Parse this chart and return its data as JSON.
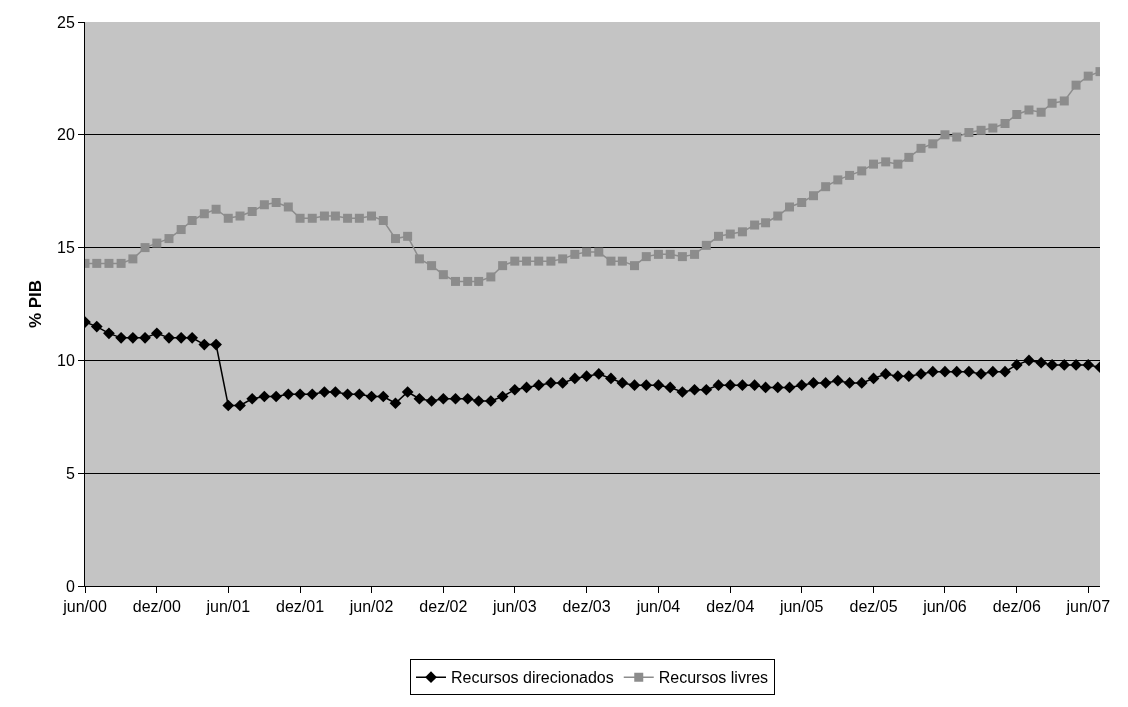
{
  "chart_data": {
    "type": "line",
    "ylabel": "% PIB",
    "x": [
      "2000-06",
      "2000-07",
      "2000-08",
      "2000-09",
      "2000-10",
      "2000-11",
      "2000-12",
      "2001-01",
      "2001-02",
      "2001-03",
      "2001-04",
      "2001-05",
      "2001-06",
      "2001-07",
      "2001-08",
      "2001-09",
      "2001-10",
      "2001-11",
      "2001-12",
      "2002-01",
      "2002-02",
      "2002-03",
      "2002-04",
      "2002-05",
      "2002-06",
      "2002-07",
      "2002-08",
      "2002-09",
      "2002-10",
      "2002-11",
      "2002-12",
      "2003-01",
      "2003-02",
      "2003-03",
      "2003-04",
      "2003-05",
      "2003-06",
      "2003-07",
      "2003-08",
      "2003-09",
      "2003-10",
      "2003-11",
      "2003-12",
      "2004-01",
      "2004-02",
      "2004-03",
      "2004-04",
      "2004-05",
      "2004-06",
      "2004-07",
      "2004-08",
      "2004-09",
      "2004-10",
      "2004-11",
      "2004-12",
      "2005-01",
      "2005-02",
      "2005-03",
      "2005-04",
      "2005-05",
      "2005-06",
      "2005-07",
      "2005-08",
      "2005-09",
      "2005-10",
      "2005-11",
      "2005-12",
      "2006-01",
      "2006-02",
      "2006-03",
      "2006-04",
      "2006-05",
      "2006-06",
      "2006-07",
      "2006-08",
      "2006-09",
      "2006-10",
      "2006-11",
      "2006-12",
      "2007-01",
      "2007-02",
      "2007-03",
      "2007-04",
      "2007-05",
      "2007-06",
      "2007-07"
    ],
    "series": [
      {
        "name": "Recursos direcionados",
        "color": "#000000",
        "marker": "diamond",
        "values": [
          11.7,
          11.5,
          11.2,
          11.0,
          11.0,
          11.0,
          11.2,
          11.0,
          11.0,
          11.0,
          10.7,
          10.7,
          8.0,
          8.0,
          8.3,
          8.4,
          8.4,
          8.5,
          8.5,
          8.5,
          8.6,
          8.6,
          8.5,
          8.5,
          8.4,
          8.4,
          8.1,
          8.6,
          8.3,
          8.2,
          8.3,
          8.3,
          8.3,
          8.2,
          8.2,
          8.4,
          8.7,
          8.8,
          8.9,
          9.0,
          9.0,
          9.2,
          9.3,
          9.4,
          9.2,
          9.0,
          8.9,
          8.9,
          8.9,
          8.8,
          8.6,
          8.7,
          8.7,
          8.9,
          8.9,
          8.9,
          8.9,
          8.8,
          8.8,
          8.8,
          8.9,
          9.0,
          9.0,
          9.1,
          9.0,
          9.0,
          9.2,
          9.4,
          9.3,
          9.3,
          9.4,
          9.5,
          9.5,
          9.5,
          9.5,
          9.4,
          9.5,
          9.5,
          9.8,
          10.0,
          9.9,
          9.8,
          9.8,
          9.8,
          9.8,
          9.7
        ]
      },
      {
        "name": "Recursos livres",
        "color": "#8c8c8c",
        "marker": "square",
        "values": [
          14.3,
          14.3,
          14.3,
          14.3,
          14.5,
          15.0,
          15.2,
          15.4,
          15.8,
          16.2,
          16.5,
          16.7,
          16.3,
          16.4,
          16.6,
          16.9,
          17.0,
          16.8,
          16.3,
          16.3,
          16.4,
          16.4,
          16.3,
          16.3,
          16.4,
          16.2,
          15.4,
          15.5,
          14.5,
          14.2,
          13.8,
          13.5,
          13.5,
          13.5,
          13.7,
          14.2,
          14.4,
          14.4,
          14.4,
          14.4,
          14.5,
          14.7,
          14.8,
          14.8,
          14.4,
          14.4,
          14.2,
          14.6,
          14.7,
          14.7,
          14.6,
          14.7,
          15.1,
          15.5,
          15.6,
          15.7,
          16.0,
          16.1,
          16.4,
          16.8,
          17.0,
          17.3,
          17.7,
          18.0,
          18.2,
          18.4,
          18.7,
          18.8,
          18.7,
          19.0,
          19.4,
          19.6,
          20.0,
          19.9,
          20.1,
          20.2,
          20.3,
          20.5,
          20.9,
          21.1,
          21.0,
          21.4,
          21.5,
          22.2,
          22.6,
          22.8
        ]
      }
    ],
    "xlim": [
      "2000-06",
      "2007-07"
    ],
    "xticks": [
      {
        "value": "2000-06",
        "label": "jun/00"
      },
      {
        "value": "2000-12",
        "label": "dez/00"
      },
      {
        "value": "2001-06",
        "label": "jun/01"
      },
      {
        "value": "2001-12",
        "label": "dez/01"
      },
      {
        "value": "2002-06",
        "label": "jun/02"
      },
      {
        "value": "2002-12",
        "label": "dez/02"
      },
      {
        "value": "2003-06",
        "label": "jun/03"
      },
      {
        "value": "2003-12",
        "label": "dez/03"
      },
      {
        "value": "2004-06",
        "label": "jun/04"
      },
      {
        "value": "2004-12",
        "label": "dez/04"
      },
      {
        "value": "2005-06",
        "label": "jun/05"
      },
      {
        "value": "2005-12",
        "label": "dez/05"
      },
      {
        "value": "2006-06",
        "label": "jun/06"
      },
      {
        "value": "2006-12",
        "label": "dez/06"
      },
      {
        "value": "2007-06",
        "label": "jun/07"
      }
    ],
    "ylim": [
      0,
      25
    ],
    "yticks": [
      0,
      5,
      10,
      15,
      20,
      25
    ],
    "grid": "y",
    "legend": "bottom",
    "line_style": "solid"
  }
}
